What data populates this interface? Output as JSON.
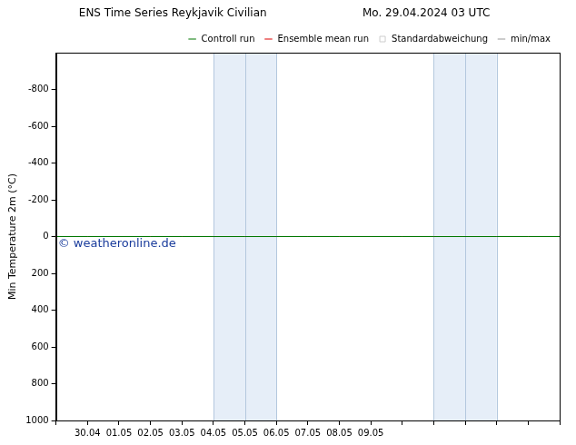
{
  "chart_data": {
    "type": "line",
    "title": "ENS Time Series Reykjavik Civilian",
    "subtitle": "Mo. 29.04.2024 03 UTC",
    "y_label": "Min Temperature 2m (°C)",
    "annotations": [
      "© weatheronline.de"
    ],
    "categories": [
      null,
      "30.04",
      "01.05",
      "02.05",
      "03.05",
      "04.05",
      "05.05",
      "06.05",
      "07.05",
      "08.05",
      "09.05",
      null,
      null,
      null,
      null,
      null,
      null
    ],
    "shaded": [
      {
        "from": 5,
        "to": 7
      },
      {
        "from": 12,
        "to": 14
      }
    ],
    "series": [
      {
        "name": "min/max",
        "color": "#999999",
        "type": "line",
        "values": [
          null,
          null,
          null,
          null,
          null,
          null,
          null,
          null,
          null,
          null,
          null,
          null,
          null,
          null,
          null,
          null,
          null
        ]
      },
      {
        "name": "Standardabweichung",
        "color": "#cccccc",
        "type": "area",
        "values": [
          null,
          null,
          null,
          null,
          null,
          null,
          null,
          null,
          null,
          null,
          null,
          null,
          null,
          null,
          null,
          null,
          null
        ]
      },
      {
        "name": "Ensemble mean run",
        "color": "#dd0000",
        "type": "line",
        "values": [
          0,
          0,
          0,
          0,
          0,
          0,
          0,
          0,
          0,
          0,
          0,
          0,
          0,
          0,
          0,
          0,
          0
        ]
      },
      {
        "name": "Controll run",
        "color": "#007700",
        "type": "line",
        "values": [
          0,
          0,
          0,
          0,
          0,
          0,
          0,
          0,
          0,
          0,
          0,
          0,
          0,
          0,
          0,
          0,
          0
        ]
      }
    ],
    "ylim": [
      1000,
      -1000
    ],
    "yticks": [
      -800,
      -600,
      -400,
      -200,
      0,
      200,
      400,
      600,
      800,
      1000
    ],
    "grid": false,
    "legend": "top-right"
  }
}
